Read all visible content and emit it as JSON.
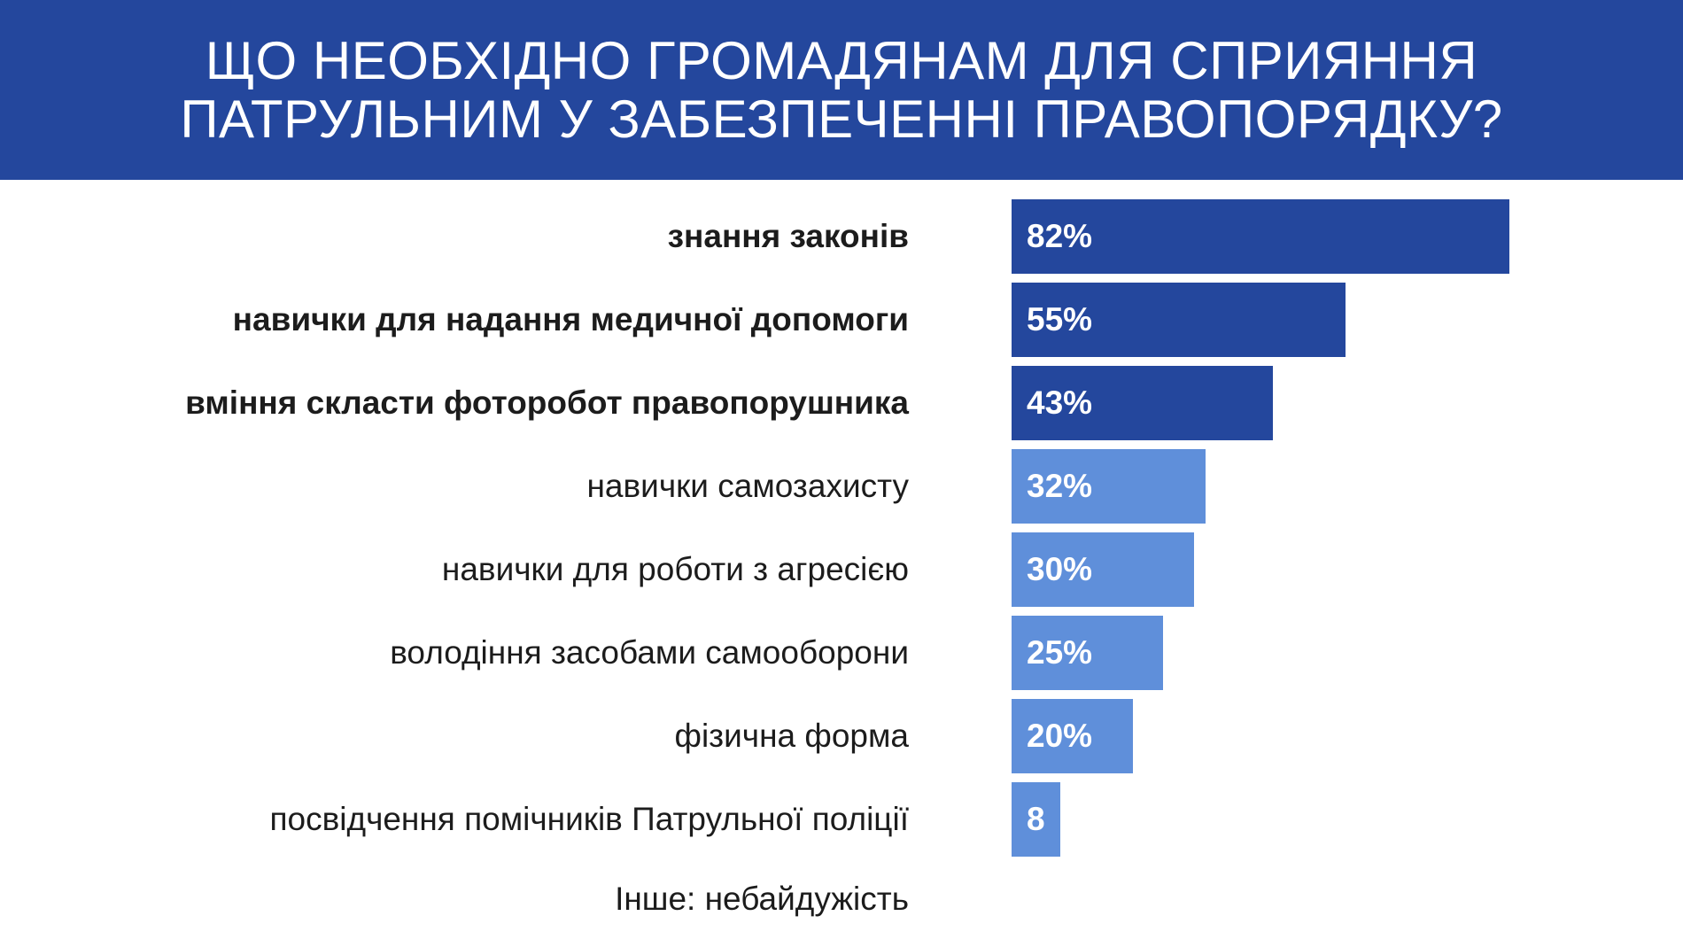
{
  "header": {
    "title_line1": "ЩО НЕОБХІДНО ГРОМАДЯНАМ ДЛЯ СПРИЯННЯ",
    "title_line2": "ПАТРУЛЬНИМ У ЗАБЕЗПЕЧЕННІ ПРАВОПОРЯДКУ?"
  },
  "colors": {
    "header_bg": "#24479d",
    "dark_bar": "#24479d",
    "light_bar": "#5f8fda",
    "label_text": "#1c1c1c"
  },
  "chart_data": {
    "type": "bar",
    "orientation": "horizontal",
    "title": "ЩО НЕОБХІДНО ГРОМАДЯНАМ ДЛЯ СПРИЯННЯ ПАТРУЛЬНИМ У ЗАБЕЗПЕЧЕННІ ПРАВОПОРЯДКУ?",
    "categories": [
      "знання законів",
      "навички для надання медичної допомоги",
      "вміння скласти фоторобот правопорушника",
      "навички самозахисту",
      "навички для роботи з агресією",
      "володіння засобами самооборони",
      "фізична форма",
      "посвідчення помічників Патрульної поліції"
    ],
    "values": [
      82,
      55,
      43,
      32,
      30,
      25,
      20,
      8
    ],
    "value_labels": [
      "82%",
      "55%",
      "43%",
      "32%",
      "30%",
      "25%",
      "20%",
      "8"
    ],
    "highlighted": [
      true,
      true,
      true,
      false,
      false,
      false,
      false,
      false
    ],
    "xlim": [
      0,
      100
    ],
    "grid": false,
    "legend": "none",
    "note": "Інше: небайдужість"
  }
}
